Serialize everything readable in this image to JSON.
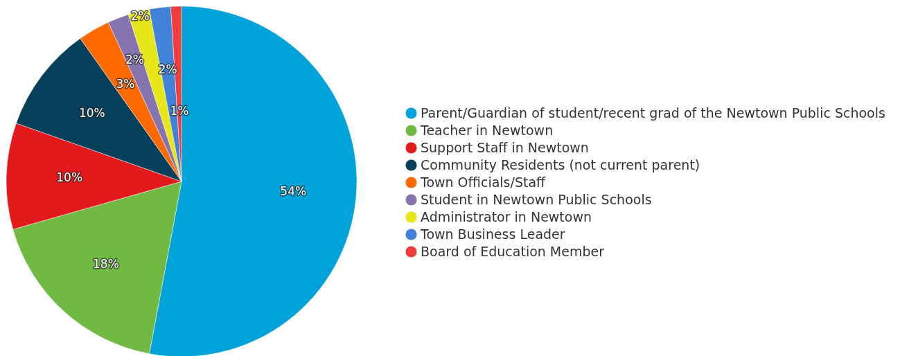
{
  "chart_data": {
    "type": "pie",
    "categories": [
      "Parent/Guardian of student/recent grad of the Newtown Public Schools",
      "Teacher in Newtown",
      "Support Staff in Newtown",
      "Community Residents (not current parent)",
      "Town Officials/Staff",
      "Student in Newtown Public Schools",
      "Administrator in Newtown",
      "Town Business Leader",
      "Board of Education Member"
    ],
    "values": [
      54,
      18,
      10,
      10,
      3,
      2,
      2,
      2,
      1
    ],
    "colors": [
      "#00a3d9",
      "#70b943",
      "#e3191c",
      "#04405a",
      "#ff6a00",
      "#8574b0",
      "#e6e619",
      "#4182d8",
      "#ef3d3d"
    ],
    "value_labels": [
      "54%",
      "18%",
      "10%",
      "10%",
      "3%",
      "2%",
      "2%",
      "2%",
      "1%"
    ],
    "legend": "right"
  }
}
